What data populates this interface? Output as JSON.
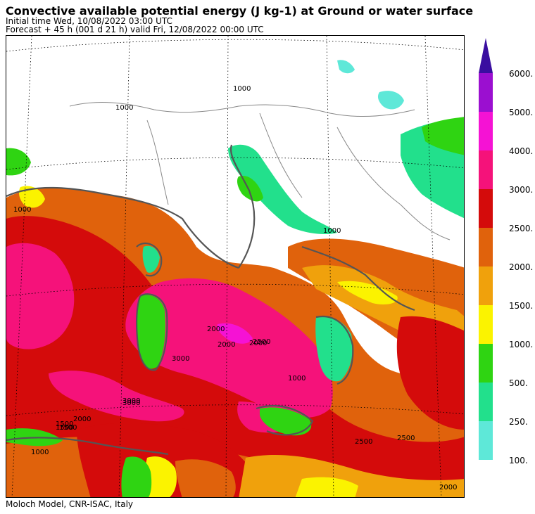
{
  "title": "Convective available potential energy (J kg-1) at Ground or water surface",
  "subtitle_line1": "Initial time  Wed, 10/08/2022  03:00 UTC",
  "subtitle_line2": "Forecast  +  45 h  (001 d 21 h)  valid Fri, 12/08/2022 00:00 UTC",
  "footer": "Moloch Model, CNR-ISAC, Italy",
  "legend": {
    "labels": [
      "6000.",
      "5000.",
      "4000.",
      "3000.",
      "2500.",
      "2000.",
      "1500.",
      "1000.",
      "500.",
      "250.",
      "100."
    ],
    "colors": [
      "#9b0fd0",
      "#f512d4",
      "#f5127a",
      "#d40b0b",
      "#e0620c",
      "#f0a10c",
      "#fbf300",
      "#2fd412",
      "#22e08c",
      "#5ee8d8"
    ],
    "arrow_color": "#3a0ea0"
  },
  "contour_labels": [
    "2000",
    "3000",
    "1000",
    "1500",
    "2500",
    "1000",
    "2000",
    "3000",
    "1500",
    "2000",
    "2500",
    "2500",
    "2000",
    "1000",
    "1000",
    "1000",
    "1500",
    "3000",
    "1000",
    "2000"
  ]
}
